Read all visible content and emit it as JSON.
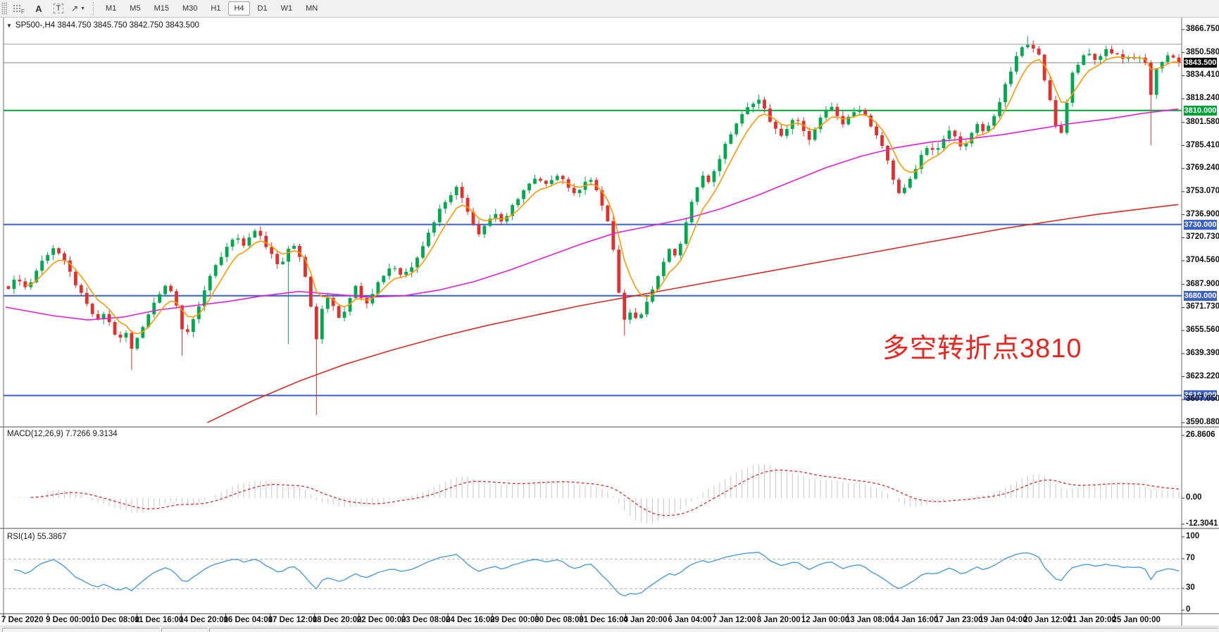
{
  "toolbar": {
    "icons": [
      {
        "name": "grid-f",
        "label": "F"
      },
      {
        "name": "text-a",
        "label": "A"
      },
      {
        "name": "text-t",
        "label": "T"
      },
      {
        "name": "chevron-down",
        "label": "▼"
      }
    ],
    "arrows_glyph": "↗",
    "timeframes": [
      "M1",
      "M5",
      "M15",
      "M30",
      "H1",
      "H4",
      "D1",
      "W1",
      "MN"
    ],
    "active_timeframe": "H4"
  },
  "chart": {
    "title": {
      "dropdown": "▼",
      "symbol_period": "SP500-,H4",
      "open": "3844.750",
      "high": "3845.750",
      "low": "3842.750",
      "close": "3843.500"
    }
  },
  "macd_pane": {
    "label": "MACD(12,26,9)",
    "values": "7.7266 9.3134",
    "axis_labels": [
      "26.8606",
      "0.00",
      "-12.3041"
    ]
  },
  "rsi_pane": {
    "label": "RSI(14)",
    "value": "55.3867",
    "axis_labels": [
      "100",
      "70",
      "30",
      "0"
    ]
  },
  "annotation": {
    "text": "多空转折点3810",
    "color": "#E8251F"
  },
  "chart_data": {
    "type": "candlestick",
    "symbol": "SP500-",
    "timeframe": "H4",
    "current_price": 3843.5,
    "up_color": "#00A94F",
    "down_color": "#E03030",
    "price_axis_ticks": [
      3866.75,
      3850.58,
      3834.41,
      3818.24,
      3801.58,
      3785.41,
      3769.24,
      3753.07,
      3736.9,
      3720.73,
      3704.56,
      3687.9,
      3671.73,
      3655.56,
      3639.39,
      3623.22,
      3607.05,
      3590.88
    ],
    "current_badge": {
      "label": "3843.500",
      "bg": "#000000"
    },
    "levels": [
      {
        "price": 3856.5,
        "color": "#999999",
        "width": 1,
        "badge": false,
        "label": ""
      },
      {
        "price": 3810.0,
        "color": "#00A136",
        "width": 2,
        "badge": true,
        "label": "3810.000"
      },
      {
        "price": 3730.0,
        "color": "#3A5FCB",
        "width": 2,
        "badge": true,
        "label": "3730.000"
      },
      {
        "price": 3680.0,
        "color": "#3A5FCB",
        "width": 2,
        "badge": true,
        "label": "3680.000"
      },
      {
        "price": 3610.0,
        "color": "#3A5FCB",
        "width": 2,
        "badge": true,
        "label": "3610.000"
      }
    ],
    "x_axis_labels": [
      "7 Dec 2020",
      "9 Dec 00:00",
      "10 Dec 08:00",
      "11 Dec 16:00",
      "14 Dec 20:00",
      "16 Dec 04:00",
      "17 Dec 12:00",
      "18 Dec 20:00",
      "22 Dec 00:00",
      "23 Dec 08:00",
      "24 Dec 16:00",
      "29 Dec 00:00",
      "30 Dec 08:00",
      "31 Dec 16:00",
      "4 Jan 20:00",
      "6 Jan 04:00",
      "7 Jan 12:00",
      "8 Jan 20:00",
      "12 Jan 00:00",
      "13 Jan 08:00",
      "14 Jan 16:00",
      "17 Jan 23:00",
      "19 Jan 04:00",
      "20 Jan 12:00",
      "21 Jan 20:00",
      "25 Jan 00:00"
    ],
    "candle_count": 210,
    "close_path": [
      [
        0,
        3686
      ],
      [
        0.008,
        3693
      ],
      [
        0.016,
        3684
      ],
      [
        0.022,
        3695
      ],
      [
        0.03,
        3706
      ],
      [
        0.038,
        3714
      ],
      [
        0.045,
        3708
      ],
      [
        0.052,
        3697
      ],
      [
        0.06,
        3684
      ],
      [
        0.068,
        3672
      ],
      [
        0.076,
        3662
      ],
      [
        0.082,
        3668
      ],
      [
        0.088,
        3658
      ],
      [
        0.094,
        3648
      ],
      [
        0.1,
        3655
      ],
      [
        0.105,
        3642
      ],
      [
        0.112,
        3654
      ],
      [
        0.12,
        3668
      ],
      [
        0.128,
        3681
      ],
      [
        0.135,
        3689
      ],
      [
        0.141,
        3680
      ],
      [
        0.146,
        3664
      ],
      [
        0.15,
        3650
      ],
      [
        0.156,
        3660
      ],
      [
        0.163,
        3674
      ],
      [
        0.17,
        3689
      ],
      [
        0.178,
        3702
      ],
      [
        0.186,
        3713
      ],
      [
        0.194,
        3722
      ],
      [
        0.2,
        3714
      ],
      [
        0.206,
        3722
      ],
      [
        0.212,
        3726
      ],
      [
        0.219,
        3716
      ],
      [
        0.226,
        3708
      ],
      [
        0.232,
        3700
      ],
      [
        0.238,
        3712
      ],
      [
        0.243,
        3718
      ],
      [
        0.249,
        3706
      ],
      [
        0.254,
        3692
      ],
      [
        0.258,
        3676
      ],
      [
        0.262,
        3640
      ],
      [
        0.265,
        3662
      ],
      [
        0.269,
        3674
      ],
      [
        0.274,
        3681
      ],
      [
        0.279,
        3670
      ],
      [
        0.284,
        3663
      ],
      [
        0.29,
        3676
      ],
      [
        0.296,
        3687
      ],
      [
        0.301,
        3680
      ],
      [
        0.307,
        3675
      ],
      [
        0.313,
        3686
      ],
      [
        0.32,
        3694
      ],
      [
        0.328,
        3702
      ],
      [
        0.336,
        3694
      ],
      [
        0.344,
        3700
      ],
      [
        0.352,
        3712
      ],
      [
        0.36,
        3726
      ],
      [
        0.368,
        3740
      ],
      [
        0.376,
        3750
      ],
      [
        0.383,
        3756
      ],
      [
        0.39,
        3745
      ],
      [
        0.396,
        3732
      ],
      [
        0.402,
        3724
      ],
      [
        0.409,
        3732
      ],
      [
        0.416,
        3738
      ],
      [
        0.423,
        3730
      ],
      [
        0.43,
        3742
      ],
      [
        0.438,
        3752
      ],
      [
        0.445,
        3758
      ],
      [
        0.452,
        3763
      ],
      [
        0.458,
        3756
      ],
      [
        0.464,
        3762
      ],
      [
        0.47,
        3766
      ],
      [
        0.477,
        3758
      ],
      [
        0.484,
        3750
      ],
      [
        0.49,
        3758
      ],
      [
        0.496,
        3764
      ],
      [
        0.503,
        3752
      ],
      [
        0.509,
        3740
      ],
      [
        0.515,
        3724
      ],
      [
        0.52,
        3689
      ],
      [
        0.524,
        3668
      ],
      [
        0.528,
        3661
      ],
      [
        0.533,
        3672
      ],
      [
        0.537,
        3663
      ],
      [
        0.542,
        3670
      ],
      [
        0.548,
        3680
      ],
      [
        0.554,
        3692
      ],
      [
        0.56,
        3703
      ],
      [
        0.565,
        3714
      ],
      [
        0.57,
        3706
      ],
      [
        0.576,
        3722
      ],
      [
        0.582,
        3740
      ],
      [
        0.588,
        3756
      ],
      [
        0.593,
        3766
      ],
      [
        0.598,
        3759
      ],
      [
        0.604,
        3770
      ],
      [
        0.61,
        3781
      ],
      [
        0.616,
        3792
      ],
      [
        0.622,
        3801
      ],
      [
        0.628,
        3808
      ],
      [
        0.634,
        3814
      ],
      [
        0.64,
        3819
      ],
      [
        0.645,
        3812
      ],
      [
        0.65,
        3804
      ],
      [
        0.655,
        3797
      ],
      [
        0.66,
        3791
      ],
      [
        0.666,
        3799
      ],
      [
        0.672,
        3806
      ],
      [
        0.678,
        3797
      ],
      [
        0.684,
        3788
      ],
      [
        0.69,
        3800
      ],
      [
        0.696,
        3807
      ],
      [
        0.702,
        3813
      ],
      [
        0.708,
        3806
      ],
      [
        0.714,
        3799
      ],
      [
        0.72,
        3808
      ],
      [
        0.726,
        3813
      ],
      [
        0.732,
        3806
      ],
      [
        0.738,
        3797
      ],
      [
        0.744,
        3788
      ],
      [
        0.75,
        3778
      ],
      [
        0.756,
        3762
      ],
      [
        0.762,
        3750
      ],
      [
        0.768,
        3758
      ],
      [
        0.774,
        3768
      ],
      [
        0.78,
        3779
      ],
      [
        0.786,
        3786
      ],
      [
        0.792,
        3780
      ],
      [
        0.798,
        3788
      ],
      [
        0.804,
        3796
      ],
      [
        0.81,
        3790
      ],
      [
        0.816,
        3783
      ],
      [
        0.822,
        3792
      ],
      [
        0.828,
        3800
      ],
      [
        0.834,
        3794
      ],
      [
        0.84,
        3803
      ],
      [
        0.846,
        3814
      ],
      [
        0.852,
        3828
      ],
      [
        0.858,
        3841
      ],
      [
        0.864,
        3852
      ],
      [
        0.869,
        3858
      ],
      [
        0.874,
        3851
      ],
      [
        0.879,
        3856
      ],
      [
        0.884,
        3836
      ],
      [
        0.889,
        3820
      ],
      [
        0.894,
        3800
      ],
      [
        0.899,
        3792
      ],
      [
        0.904,
        3815
      ],
      [
        0.909,
        3836
      ],
      [
        0.914,
        3843
      ],
      [
        0.919,
        3849
      ],
      [
        0.924,
        3851
      ],
      [
        0.929,
        3843
      ],
      [
        0.934,
        3849
      ],
      [
        0.939,
        3855
      ],
      [
        0.944,
        3847
      ],
      [
        0.949,
        3852
      ],
      [
        0.954,
        3843
      ],
      [
        0.959,
        3850
      ],
      [
        0.964,
        3845
      ],
      [
        0.969,
        3849
      ],
      [
        0.973,
        3840
      ],
      [
        0.977,
        3814
      ],
      [
        0.981,
        3840
      ],
      [
        0.986,
        3845
      ],
      [
        0.991,
        3848
      ],
      [
        1,
        3843.5
      ]
    ],
    "wick_events": [
      {
        "f": 0.105,
        "low": 3628
      },
      {
        "f": 0.15,
        "low": 3638
      },
      {
        "f": 0.241,
        "low": 3646
      },
      {
        "f": 0.262,
        "low": 3596.3
      },
      {
        "f": 0.524,
        "low": 3652
      },
      {
        "f": 0.869,
        "high": 3862
      },
      {
        "f": 0.977,
        "low": 3785.5
      }
    ],
    "moving_averages": {
      "fast": {
        "color": "#FF9900",
        "type": "ema",
        "period": 6
      },
      "medium": {
        "color": "#E11FD3",
        "points": [
          [
            0,
            3672
          ],
          [
            0.04,
            3666
          ],
          [
            0.07,
            3663
          ],
          [
            0.1,
            3665
          ],
          [
            0.13,
            3670
          ],
          [
            0.16,
            3673
          ],
          [
            0.19,
            3676
          ],
          [
            0.22,
            3680
          ],
          [
            0.25,
            3683
          ],
          [
            0.28,
            3681
          ],
          [
            0.31,
            3679
          ],
          [
            0.34,
            3680
          ],
          [
            0.37,
            3684
          ],
          [
            0.4,
            3690
          ],
          [
            0.43,
            3698
          ],
          [
            0.46,
            3707
          ],
          [
            0.49,
            3716
          ],
          [
            0.52,
            3724
          ],
          [
            0.55,
            3729
          ],
          [
            0.58,
            3734
          ],
          [
            0.61,
            3741
          ],
          [
            0.64,
            3750
          ],
          [
            0.67,
            3760
          ],
          [
            0.7,
            3770
          ],
          [
            0.73,
            3778
          ],
          [
            0.76,
            3784
          ],
          [
            0.79,
            3788
          ],
          [
            0.82,
            3790
          ],
          [
            0.85,
            3793
          ],
          [
            0.88,
            3797
          ],
          [
            0.91,
            3801
          ],
          [
            0.94,
            3804
          ],
          [
            0.97,
            3808
          ],
          [
            1,
            3811
          ]
        ]
      },
      "slow": {
        "color": "#D62B25",
        "points": [
          [
            0.172,
            3591
          ],
          [
            0.21,
            3606
          ],
          [
            0.25,
            3620
          ],
          [
            0.29,
            3632
          ],
          [
            0.33,
            3642
          ],
          [
            0.37,
            3651
          ],
          [
            0.41,
            3659
          ],
          [
            0.45,
            3666
          ],
          [
            0.49,
            3673
          ],
          [
            0.53,
            3679
          ],
          [
            0.57,
            3685
          ],
          [
            0.61,
            3691
          ],
          [
            0.65,
            3697
          ],
          [
            0.69,
            3703
          ],
          [
            0.73,
            3709
          ],
          [
            0.77,
            3715
          ],
          [
            0.81,
            3721
          ],
          [
            0.85,
            3727
          ],
          [
            0.89,
            3732
          ],
          [
            0.93,
            3737
          ],
          [
            0.97,
            3741
          ],
          [
            1,
            3744
          ]
        ]
      }
    },
    "macd": {
      "params": [
        12,
        26,
        9
      ],
      "main_value": 7.7266,
      "signal_value": 9.3134,
      "axis_max": 26.8606,
      "axis_min": -12.3041,
      "histogram_color": "#C8C8C8",
      "signal_color": "#CD3532"
    },
    "rsi": {
      "period": 14,
      "value": 55.3867,
      "levels": [
        70,
        30
      ],
      "color": "#4E9BDD"
    }
  }
}
